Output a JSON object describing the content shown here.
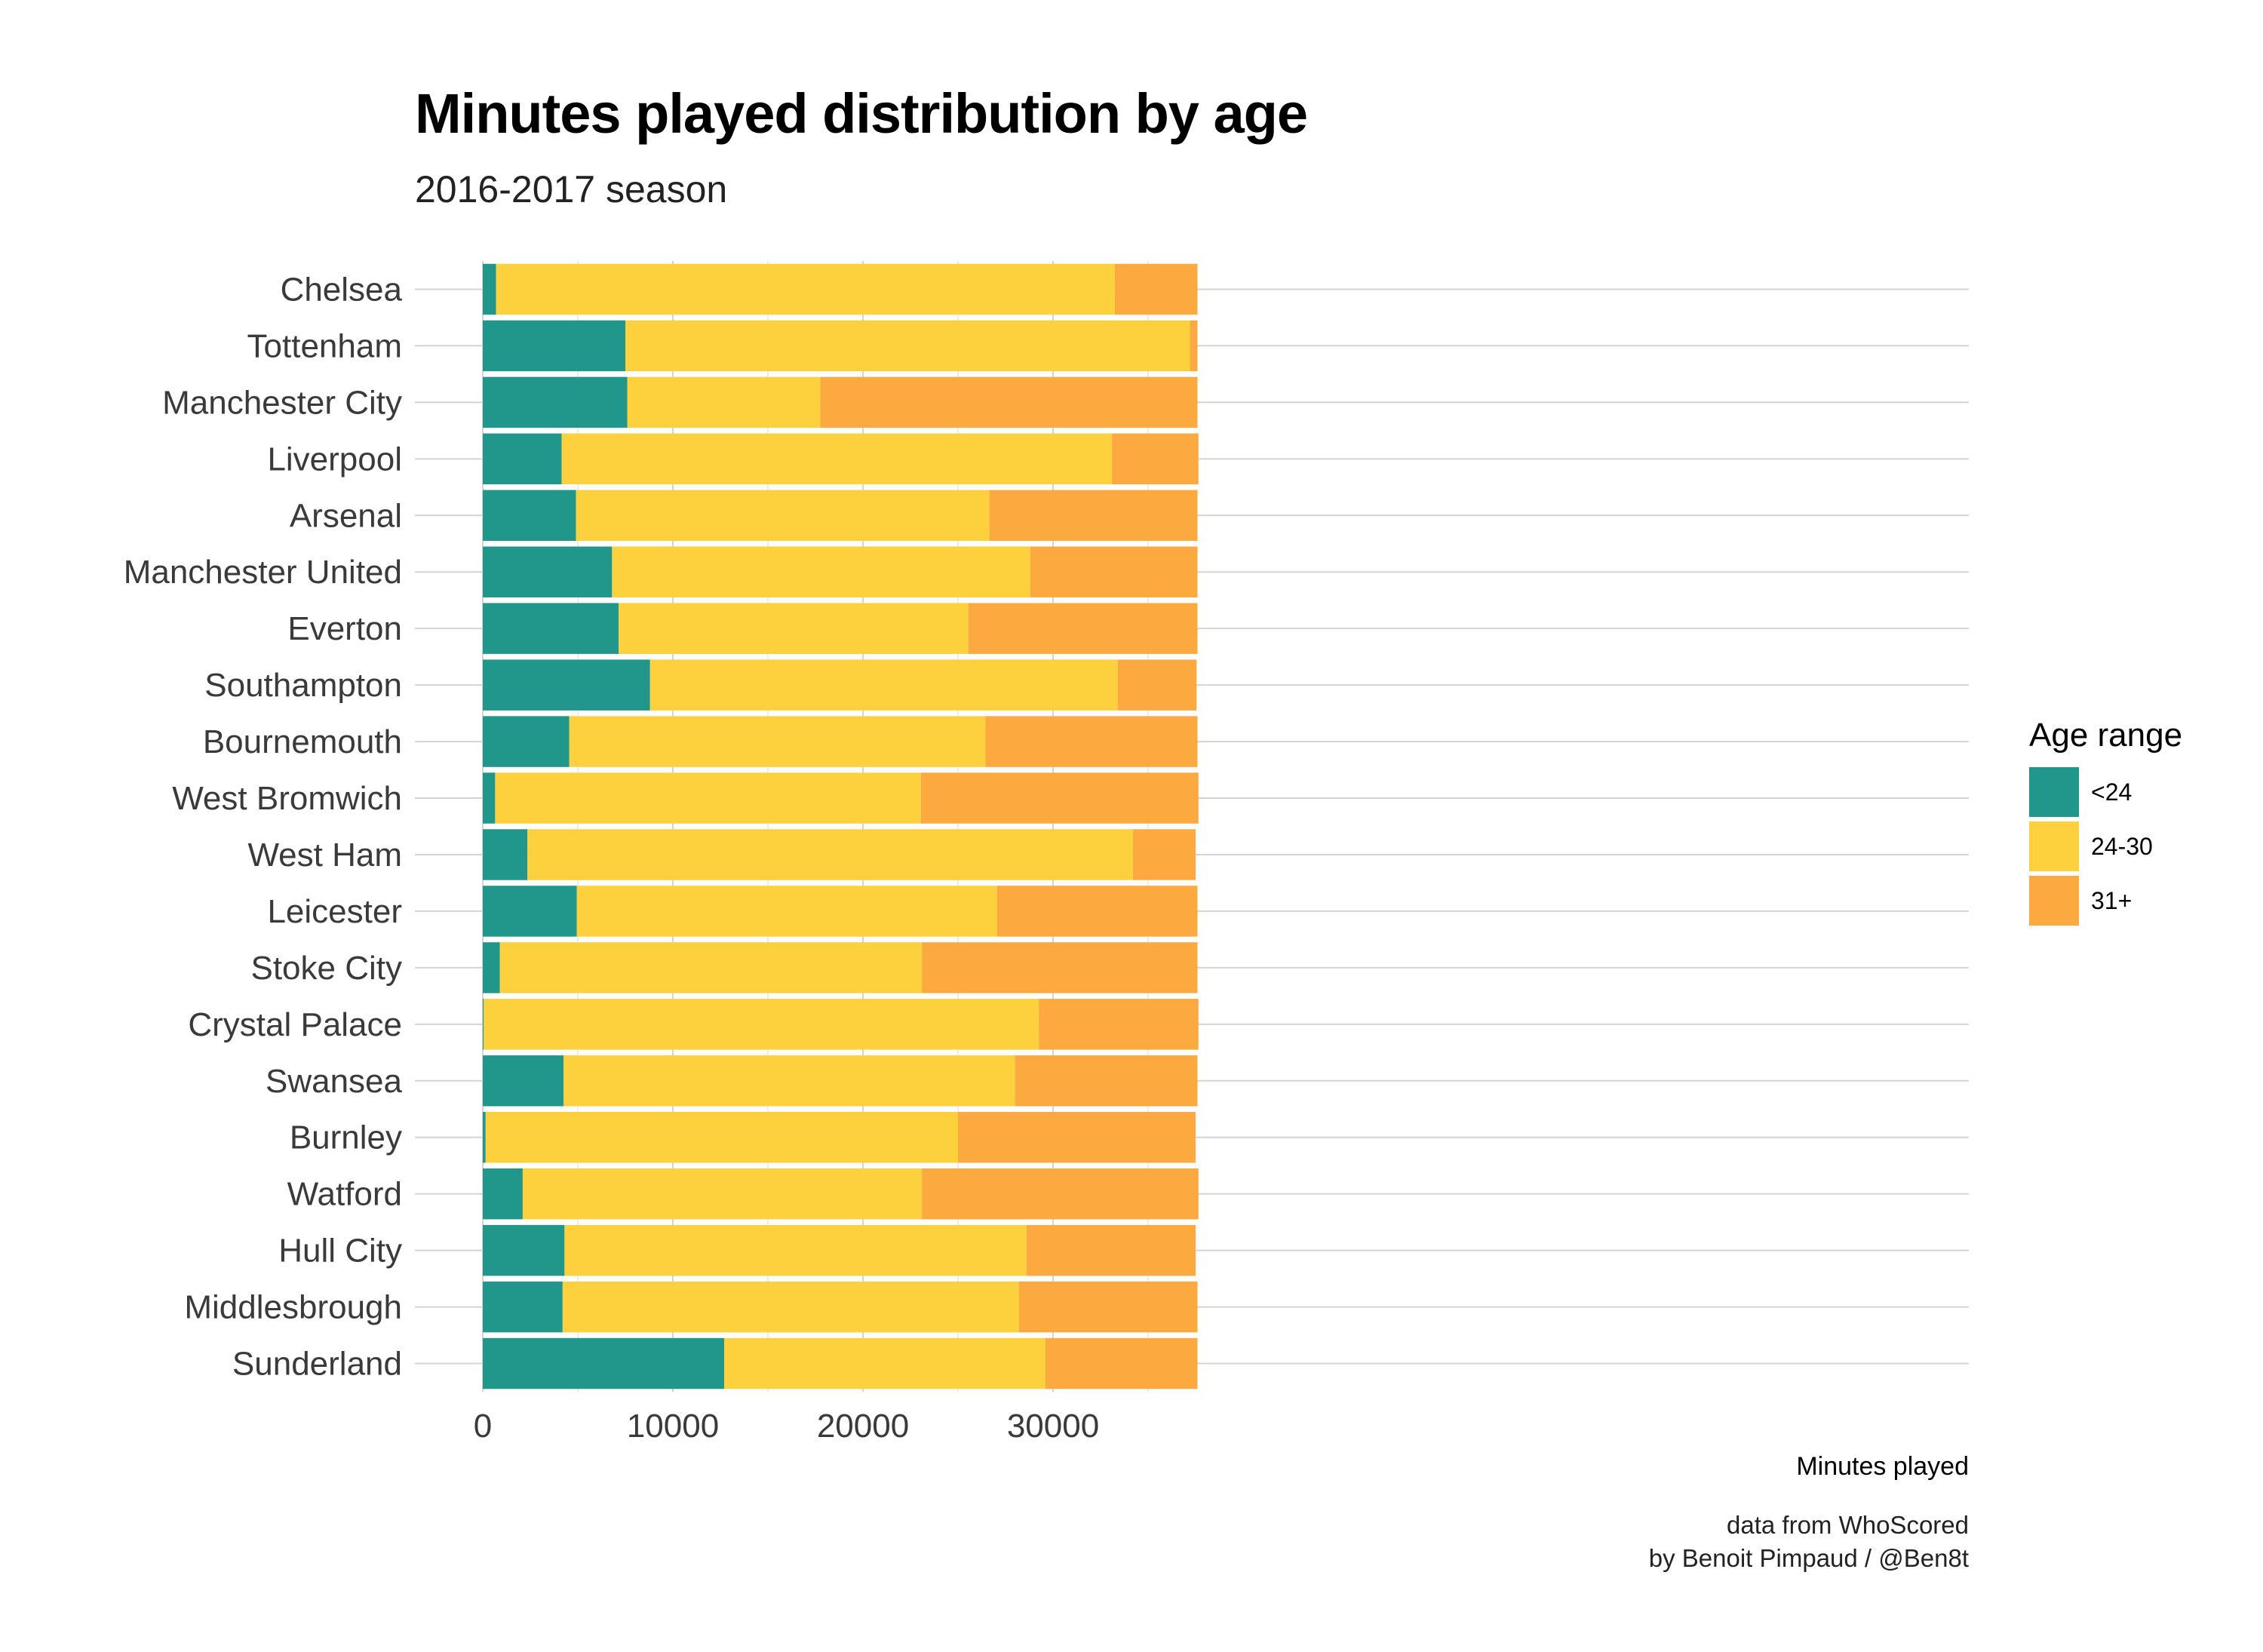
{
  "header": {
    "title": "Minutes played distribution by age",
    "subtitle": "2016-2017 season"
  },
  "legend": {
    "title": "Age range",
    "items": [
      {
        "label": "<24",
        "color": "#21968A"
      },
      {
        "label": "24-30",
        "color": "#FDD03E"
      },
      {
        "label": "31+",
        "color": "#FCAA40"
      }
    ]
  },
  "caption": {
    "line1": "data from WhoScored",
    "line2": "by Benoit Pimpaud / @Ben8t"
  },
  "chart_data": {
    "type": "bar",
    "orientation": "horizontal",
    "stacked": true,
    "title": "Minutes played distribution by age",
    "subtitle": "2016-2017 season",
    "xlabel": "Minutes played",
    "ylabel": "",
    "xlim": [
      0,
      39500
    ],
    "xticks": [
      0,
      10000,
      20000,
      30000
    ],
    "grid": true,
    "legend_position": "right",
    "legend_title": "Age range",
    "categories": [
      "Chelsea",
      "Tottenham",
      "Manchester City",
      "Liverpool",
      "Arsenal",
      "Manchester United",
      "Everton",
      "Southampton",
      "Bournemouth",
      "West Bromwich",
      "West Ham",
      "Leicester",
      "Stoke City",
      "Crystal Palace",
      "Swansea",
      "Burnley",
      "Watford",
      "Hull City",
      "Middlesbrough",
      "Sunderland"
    ],
    "series": [
      {
        "name": "<24",
        "color": "#21968A",
        "values": [
          700,
          7500,
          7600,
          4150,
          4900,
          6800,
          7150,
          8800,
          4550,
          650,
          2350,
          4950,
          900,
          50,
          4250,
          150,
          2100,
          4300,
          4200,
          12700
        ]
      },
      {
        "name": "24-30",
        "color": "#FDD03E",
        "values": [
          32550,
          29700,
          10150,
          28950,
          21750,
          22000,
          18400,
          24600,
          21900,
          22400,
          31850,
          22100,
          22200,
          29200,
          23750,
          24850,
          21000,
          24300,
          24000,
          16900
        ]
      },
      {
        "name": "31+",
        "color": "#FCAA40",
        "values": [
          4350,
          400,
          19850,
          4550,
          10950,
          8800,
          12050,
          4150,
          11150,
          14600,
          3300,
          10550,
          14500,
          8400,
          9600,
          12500,
          14550,
          8900,
          9400,
          8000
        ]
      }
    ]
  }
}
